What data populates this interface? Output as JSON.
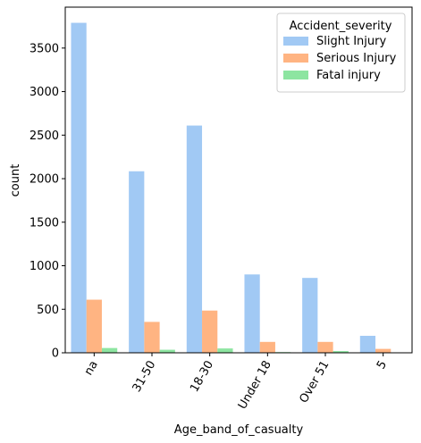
{
  "chart_data": {
    "type": "bar",
    "xlabel": "Age_band_of_casualty",
    "ylabel": "count",
    "categories": [
      "na",
      "31-50",
      "18-30",
      "Under 18",
      "Over 51",
      "5"
    ],
    "ylim": [
      0,
      3970
    ],
    "yticks": [
      0,
      500,
      1000,
      1500,
      2000,
      2500,
      3000,
      3500
    ],
    "grid": false,
    "legend": {
      "title": "Accident_severity",
      "placement": "top-right"
    },
    "series": [
      {
        "name": "Slight Injury",
        "color": "#a1c9f4",
        "values": [
          3790,
          2085,
          2610,
          900,
          860,
          195
        ]
      },
      {
        "name": "Serious Injury",
        "color": "#ffb482",
        "values": [
          610,
          355,
          485,
          125,
          125,
          45
        ]
      },
      {
        "name": "Fatal injury",
        "color": "#8de5a1",
        "values": [
          55,
          35,
          50,
          8,
          20,
          5
        ]
      }
    ]
  }
}
